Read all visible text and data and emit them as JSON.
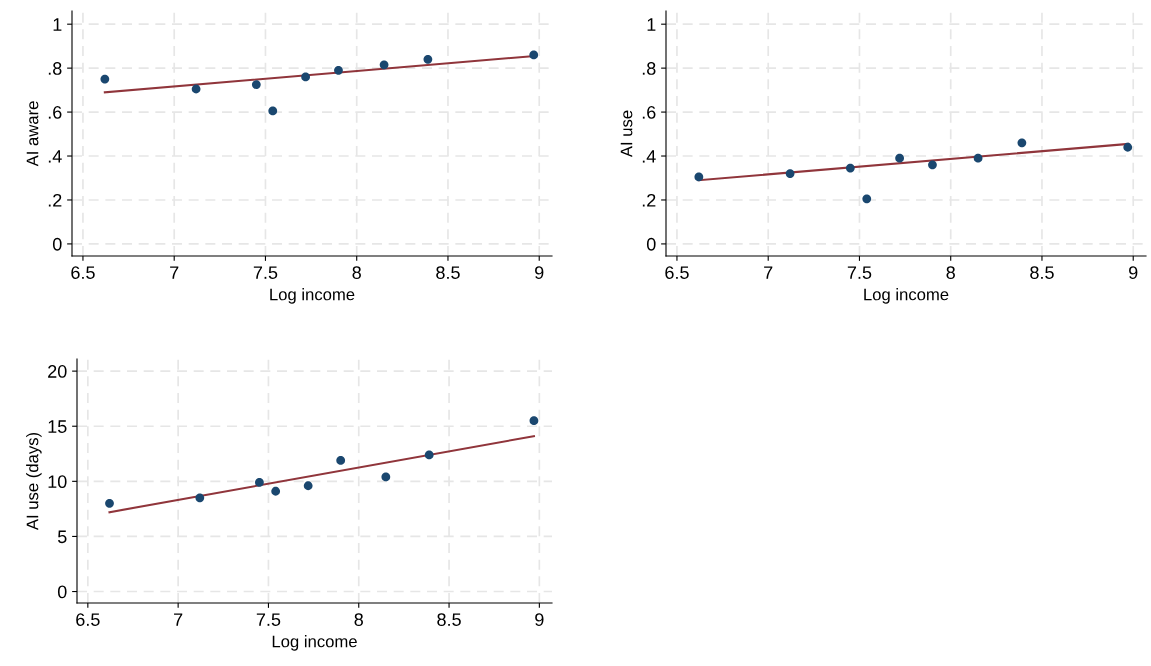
{
  "chart_data": [
    {
      "type": "scatter",
      "xlabel": "Log income",
      "ylabel": "AI aware",
      "xlim": [
        6.44,
        9.07
      ],
      "ylim": [
        -0.055,
        1.06
      ],
      "xticks": [
        6.5,
        7,
        7.5,
        8,
        8.5,
        9
      ],
      "yticks": [
        0,
        {
          "value": 0.2,
          "label": ".2"
        },
        {
          "value": 0.4,
          "label": ".4"
        },
        {
          "value": 0.6,
          "label": ".6"
        },
        {
          "value": 0.8,
          "label": ".8"
        },
        1
      ],
      "grid": true,
      "series": [
        {
          "marker": "circle",
          "color": "#1a476f",
          "x": [
            6.62,
            7.12,
            7.45,
            7.54,
            7.72,
            7.9,
            8.15,
            8.39,
            8.97
          ],
          "values": [
            0.75,
            0.705,
            0.725,
            0.605,
            0.76,
            0.79,
            0.815,
            0.84,
            0.86
          ]
        },
        {
          "type": "line",
          "color": "#90353b",
          "x": [
            6.62,
            8.97
          ],
          "values": [
            0.69,
            0.855
          ]
        }
      ]
    },
    {
      "type": "scatter",
      "xlabel": "Log income",
      "ylabel": "AI use",
      "xlim": [
        6.44,
        9.07
      ],
      "ylim": [
        -0.055,
        1.06
      ],
      "xticks": [
        6.5,
        7,
        7.5,
        8,
        8.5,
        9
      ],
      "yticks": [
        0,
        {
          "value": 0.2,
          "label": ".2"
        },
        {
          "value": 0.4,
          "label": ".4"
        },
        {
          "value": 0.6,
          "label": ".6"
        },
        {
          "value": 0.8,
          "label": ".8"
        },
        1
      ],
      "grid": true,
      "series": [
        {
          "marker": "circle",
          "color": "#1a476f",
          "x": [
            6.62,
            7.12,
            7.45,
            7.54,
            7.72,
            7.9,
            8.15,
            8.39,
            8.97
          ],
          "values": [
            0.305,
            0.32,
            0.345,
            0.205,
            0.39,
            0.36,
            0.39,
            0.46,
            0.44
          ]
        },
        {
          "type": "line",
          "color": "#90353b",
          "x": [
            6.62,
            8.97
          ],
          "values": [
            0.29,
            0.455
          ]
        }
      ]
    },
    {
      "type": "scatter",
      "xlabel": "Log income",
      "ylabel": "AI use (days)",
      "xlim": [
        6.44,
        9.07
      ],
      "ylim": [
        -1.04,
        21.1
      ],
      "xticks": [
        6.5,
        7,
        7.5,
        8,
        8.5,
        9
      ],
      "yticks": [
        0,
        5,
        10,
        15,
        20
      ],
      "grid": true,
      "series": [
        {
          "marker": "circle",
          "color": "#1a476f",
          "x": [
            6.62,
            7.12,
            7.45,
            7.54,
            7.72,
            7.9,
            8.15,
            8.39,
            8.97
          ],
          "values": [
            8.0,
            8.5,
            9.9,
            9.1,
            9.6,
            11.9,
            10.4,
            12.4,
            15.5
          ]
        },
        {
          "type": "line",
          "color": "#90353b",
          "x": [
            6.62,
            8.97
          ],
          "values": [
            7.2,
            14.1
          ]
        }
      ]
    }
  ]
}
